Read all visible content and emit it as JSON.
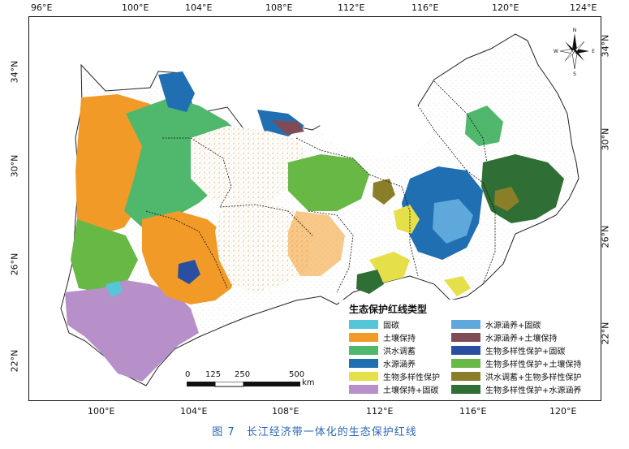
{
  "map": {
    "axes": {
      "top_ticks": [
        "96°E",
        "100°E",
        "104°E",
        "108°E",
        "112°E",
        "116°E",
        "120°E",
        "124°E"
      ],
      "bottom_ticks": [
        "100°E",
        "104°E",
        "108°E",
        "112°E",
        "116°E",
        "120°E"
      ],
      "left_ticks": [
        "34°N",
        "30°N",
        "26°N",
        "22°N"
      ],
      "right_ticks": [
        "34°N",
        "30°N",
        "26°N",
        "22°N"
      ]
    },
    "legend": {
      "title": "生态保护红线类型",
      "items": [
        {
          "label": "固碳",
          "color": "#55c6d8"
        },
        {
          "label": "土壤保持",
          "color": "#f29a28"
        },
        {
          "label": "洪水调蓄",
          "color": "#4fb86c"
        },
        {
          "label": "水源涵养",
          "color": "#1f6fb2"
        },
        {
          "label": "生物多样性保护",
          "color": "#e5df4a"
        },
        {
          "label": "土壤保持+固碳",
          "color": "#b890c9"
        },
        {
          "label": "水源涵养+固碳",
          "color": "#5fa8dc"
        },
        {
          "label": "水源涵养+土壤保持",
          "color": "#7f4b57"
        },
        {
          "label": "生物多样性保护+固碳",
          "color": "#2b4fa0"
        },
        {
          "label": "生物多样性保护+土壤保持",
          "color": "#67b845"
        },
        {
          "label": "洪水调蓄+生物多样性保护",
          "color": "#8b7e28"
        },
        {
          "label": "生物多样性保护+水源涵养",
          "color": "#2f6f35"
        }
      ]
    },
    "scale_bar": {
      "labels": [
        "0",
        "125",
        "250",
        "500"
      ],
      "unit": "km"
    },
    "compass": {
      "n": "N",
      "s": "S",
      "e": "E",
      "w": "W"
    },
    "caption": "图 7　长江经济带一体化的生态保护红线"
  }
}
